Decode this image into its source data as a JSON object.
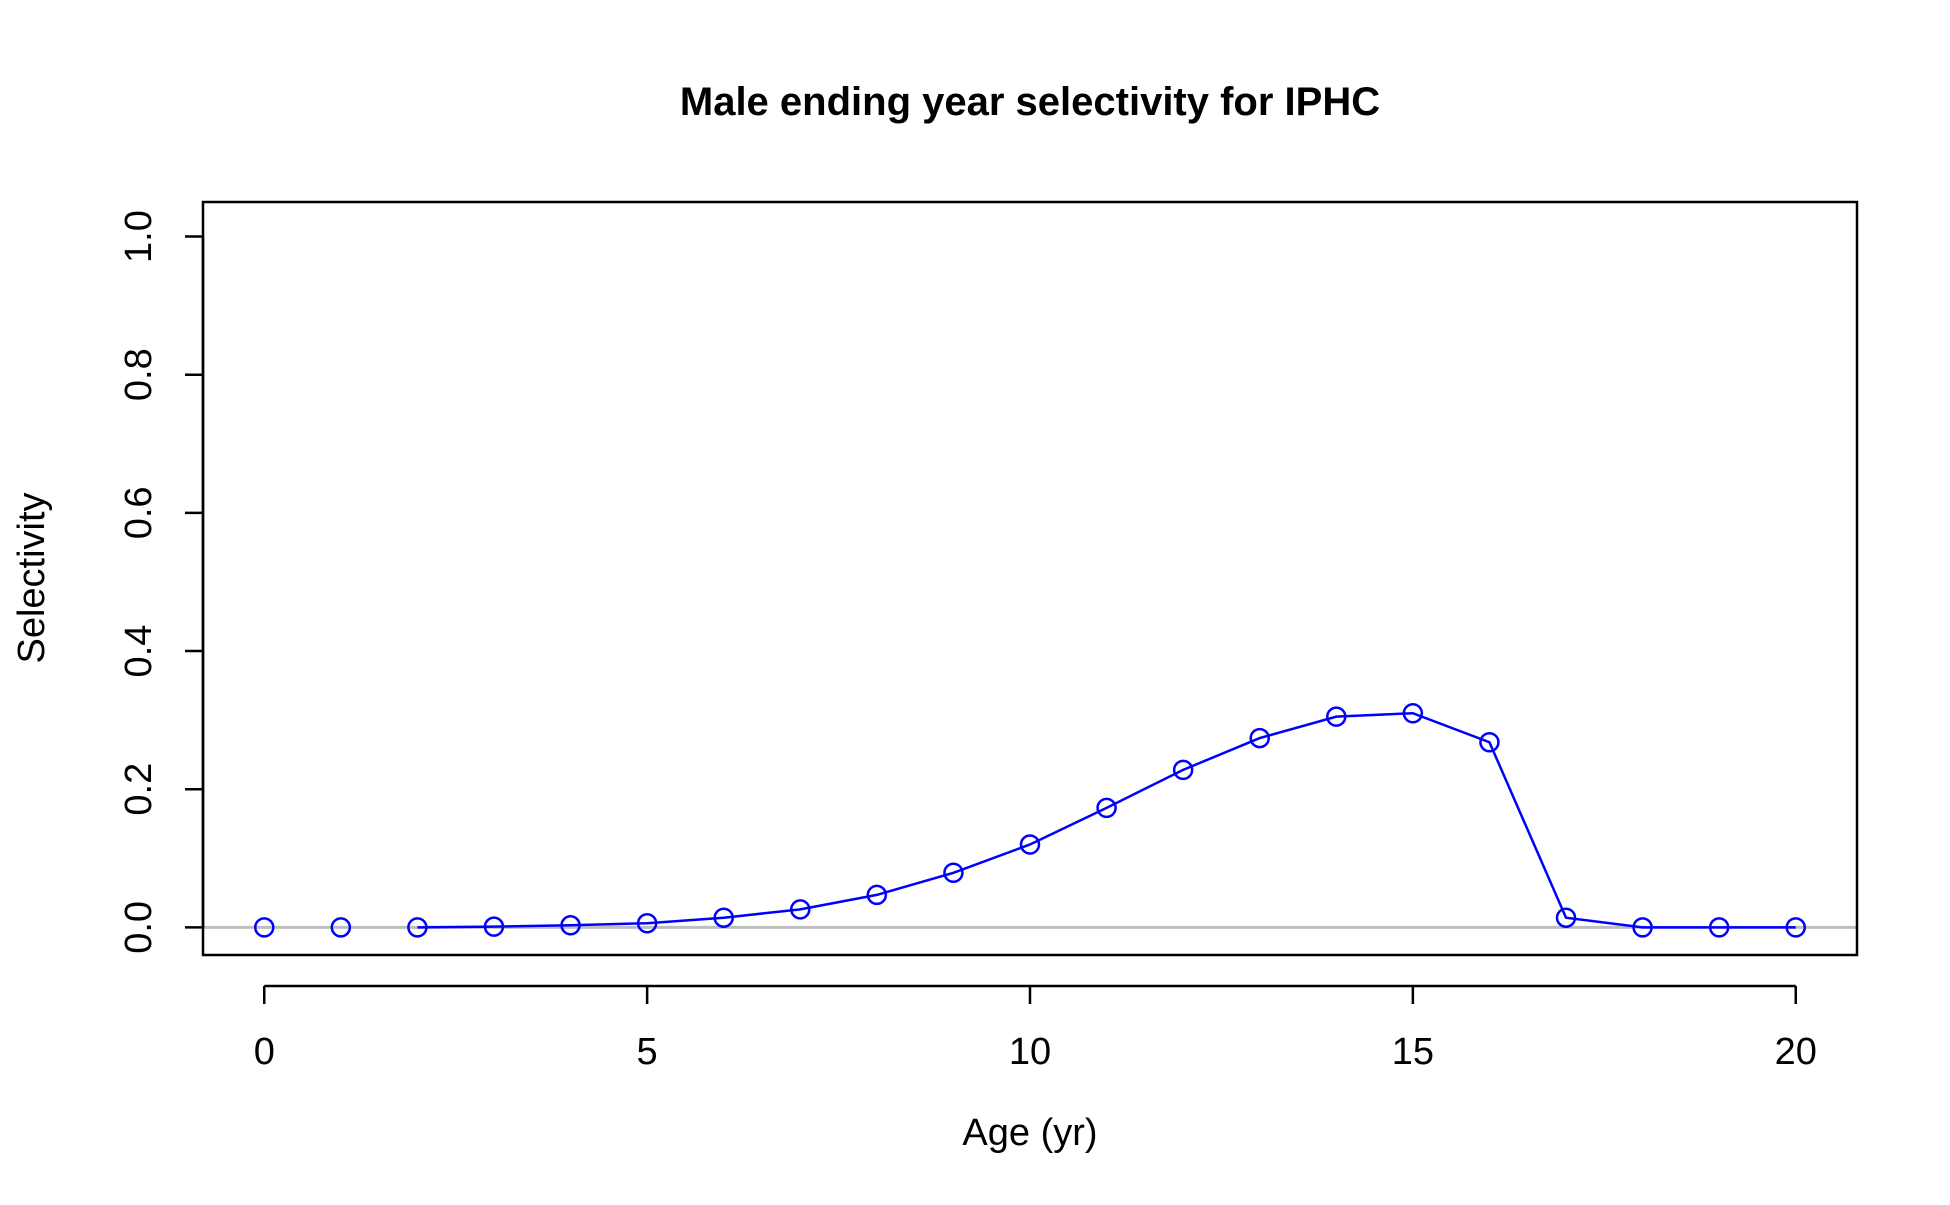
{
  "chart_data": {
    "type": "line",
    "title": "Male ending year selectivity for IPHC",
    "xlabel": "Age (yr)",
    "ylabel": "Selectivity",
    "xlim": [
      -0.8,
      20.8
    ],
    "ylim": [
      -0.04,
      1.05
    ],
    "x_ticks": [
      0,
      5,
      10,
      15,
      20
    ],
    "y_ticks": [
      0.0,
      0.2,
      0.4,
      0.6,
      0.8,
      1.0
    ],
    "x_tick_labels": [
      "0",
      "5",
      "10",
      "15",
      "20"
    ],
    "y_tick_labels": [
      "0.0",
      "0.2",
      "0.4",
      "0.6",
      "0.8",
      "1.0"
    ],
    "grid": false,
    "reference_line": {
      "y": 0,
      "color": "#bebebe"
    },
    "series": [
      {
        "color": "#0000ff",
        "marker": "open-circle",
        "x": [
          0,
          1,
          2,
          3,
          4,
          5,
          6,
          7,
          8,
          9,
          10,
          11,
          12,
          13,
          14,
          15,
          16,
          17,
          18,
          19,
          20
        ],
        "y": [
          0.0,
          0.0,
          0.0,
          0.001,
          0.003,
          0.006,
          0.014,
          0.026,
          0.047,
          0.079,
          0.12,
          0.173,
          0.228,
          0.274,
          0.305,
          0.31,
          0.268,
          0.014,
          0.0,
          0.0,
          0.0
        ],
        "line_from_index": 2
      }
    ]
  }
}
